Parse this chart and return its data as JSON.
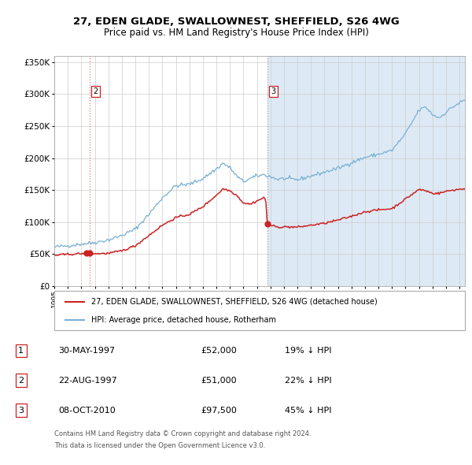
{
  "title1": "27, EDEN GLADE, SWALLOWNEST, SHEFFIELD, S26 4WG",
  "title2": "Price paid vs. HM Land Registry's House Price Index (HPI)",
  "legend_line1": "27, EDEN GLADE, SWALLOWNEST, SHEFFIELD, S26 4WG (detached house)",
  "legend_line2": "HPI: Average price, detached house, Rotherham",
  "table": [
    {
      "num": 1,
      "date": "30-MAY-1997",
      "price": "£52,000",
      "pct": "19% ↓ HPI"
    },
    {
      "num": 2,
      "date": "22-AUG-1997",
      "price": "£51,000",
      "pct": "22% ↓ HPI"
    },
    {
      "num": 3,
      "date": "08-OCT-2010",
      "price": "£97,500",
      "pct": "45% ↓ HPI"
    }
  ],
  "sale_dates_decimal": [
    1997.41,
    1997.64,
    2010.77
  ],
  "sale_prices": [
    52000,
    51000,
    97500
  ],
  "footnote1": "Contains HM Land Registry data © Crown copyright and database right 2024.",
  "footnote2": "This data is licensed under the Open Government Licence v3.0.",
  "hpi_color": "#7ab0d4",
  "price_color": "#cc2222",
  "bg_color": "#ddeaf5",
  "ylim": [
    0,
    360000
  ],
  "xlim_start": 1995.0,
  "xlim_end": 2025.4,
  "hpi_control_points": [
    [
      1995.0,
      61000
    ],
    [
      1996.0,
      63000
    ],
    [
      1997.0,
      65500
    ],
    [
      1998.0,
      68000
    ],
    [
      1999.0,
      72000
    ],
    [
      2000.0,
      79000
    ],
    [
      2001.0,
      89000
    ],
    [
      2002.0,
      112000
    ],
    [
      2003.0,
      138000
    ],
    [
      2004.0,
      157000
    ],
    [
      2004.5,
      158000
    ],
    [
      2005.0,
      159000
    ],
    [
      2006.0,
      168000
    ],
    [
      2007.0,
      183000
    ],
    [
      2007.5,
      192000
    ],
    [
      2008.0,
      185000
    ],
    [
      2008.5,
      172000
    ],
    [
      2009.0,
      163000
    ],
    [
      2009.5,
      168000
    ],
    [
      2010.0,
      172000
    ],
    [
      2010.5,
      174000
    ],
    [
      2011.0,
      171000
    ],
    [
      2011.5,
      167000
    ],
    [
      2012.0,
      168000
    ],
    [
      2013.0,
      166000
    ],
    [
      2014.0,
      172000
    ],
    [
      2015.0,
      178000
    ],
    [
      2016.0,
      184000
    ],
    [
      2017.0,
      193000
    ],
    [
      2018.0,
      201000
    ],
    [
      2019.0,
      206000
    ],
    [
      2020.0,
      212000
    ],
    [
      2021.0,
      238000
    ],
    [
      2022.0,
      275000
    ],
    [
      2022.5,
      280000
    ],
    [
      2023.0,
      268000
    ],
    [
      2023.5,
      263000
    ],
    [
      2024.0,
      272000
    ],
    [
      2024.5,
      280000
    ],
    [
      2025.3,
      290000
    ]
  ],
  "price_control_points": [
    [
      1995.0,
      48000
    ],
    [
      1996.0,
      49500
    ],
    [
      1997.0,
      50500
    ],
    [
      1997.41,
      52000
    ],
    [
      1997.64,
      51000
    ],
    [
      1998.0,
      50500
    ],
    [
      1999.0,
      51000
    ],
    [
      2000.0,
      55000
    ],
    [
      2001.0,
      63000
    ],
    [
      2002.0,
      79000
    ],
    [
      2003.0,
      95000
    ],
    [
      2004.0,
      107000
    ],
    [
      2005.0,
      112000
    ],
    [
      2006.0,
      124000
    ],
    [
      2007.0,
      142000
    ],
    [
      2007.5,
      152000
    ],
    [
      2008.0,
      149000
    ],
    [
      2008.5,
      142000
    ],
    [
      2009.0,
      130000
    ],
    [
      2009.5,
      128000
    ],
    [
      2010.0,
      133000
    ],
    [
      2010.5,
      138000
    ],
    [
      2010.65,
      136000
    ],
    [
      2010.77,
      97500
    ],
    [
      2011.0,
      95000
    ],
    [
      2011.5,
      92000
    ],
    [
      2012.0,
      92500
    ],
    [
      2013.0,
      92000
    ],
    [
      2014.0,
      95000
    ],
    [
      2015.0,
      98000
    ],
    [
      2016.0,
      103000
    ],
    [
      2017.0,
      109000
    ],
    [
      2018.0,
      116000
    ],
    [
      2019.0,
      119000
    ],
    [
      2020.0,
      121000
    ],
    [
      2021.0,
      136000
    ],
    [
      2022.0,
      151000
    ],
    [
      2022.5,
      149000
    ],
    [
      2023.0,
      145000
    ],
    [
      2023.5,
      145000
    ],
    [
      2024.0,
      148000
    ],
    [
      2024.5,
      150000
    ],
    [
      2025.3,
      152000
    ]
  ]
}
